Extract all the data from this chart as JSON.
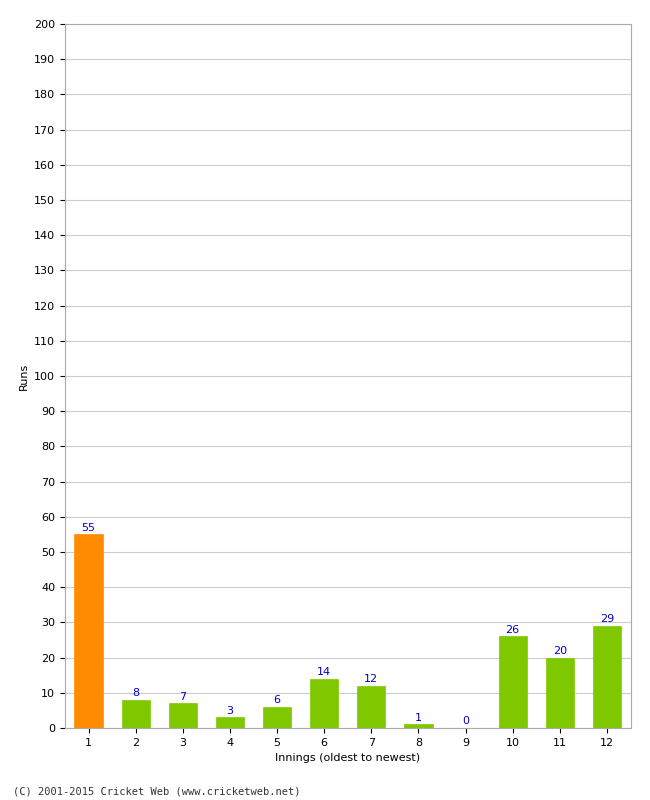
{
  "xlabel": "Innings (oldest to newest)",
  "ylabel": "Runs",
  "categories": [
    1,
    2,
    3,
    4,
    5,
    6,
    7,
    8,
    9,
    10,
    11,
    12
  ],
  "values": [
    55,
    8,
    7,
    3,
    6,
    14,
    12,
    1,
    0,
    26,
    20,
    29
  ],
  "bar_colors": [
    "#ff8c00",
    "#7fc800",
    "#7fc800",
    "#7fc800",
    "#7fc800",
    "#7fc800",
    "#7fc800",
    "#7fc800",
    "#7fc800",
    "#7fc800",
    "#7fc800",
    "#7fc800"
  ],
  "ylim": [
    0,
    200
  ],
  "ytick_step": 10,
  "label_color": "#0000cc",
  "label_fontsize": 8,
  "axis_label_fontsize": 8,
  "tick_fontsize": 8,
  "background_color": "#ffffff",
  "grid_color": "#cccccc",
  "footer_text": "(C) 2001-2015 Cricket Web (www.cricketweb.net)",
  "bar_width": 0.6
}
